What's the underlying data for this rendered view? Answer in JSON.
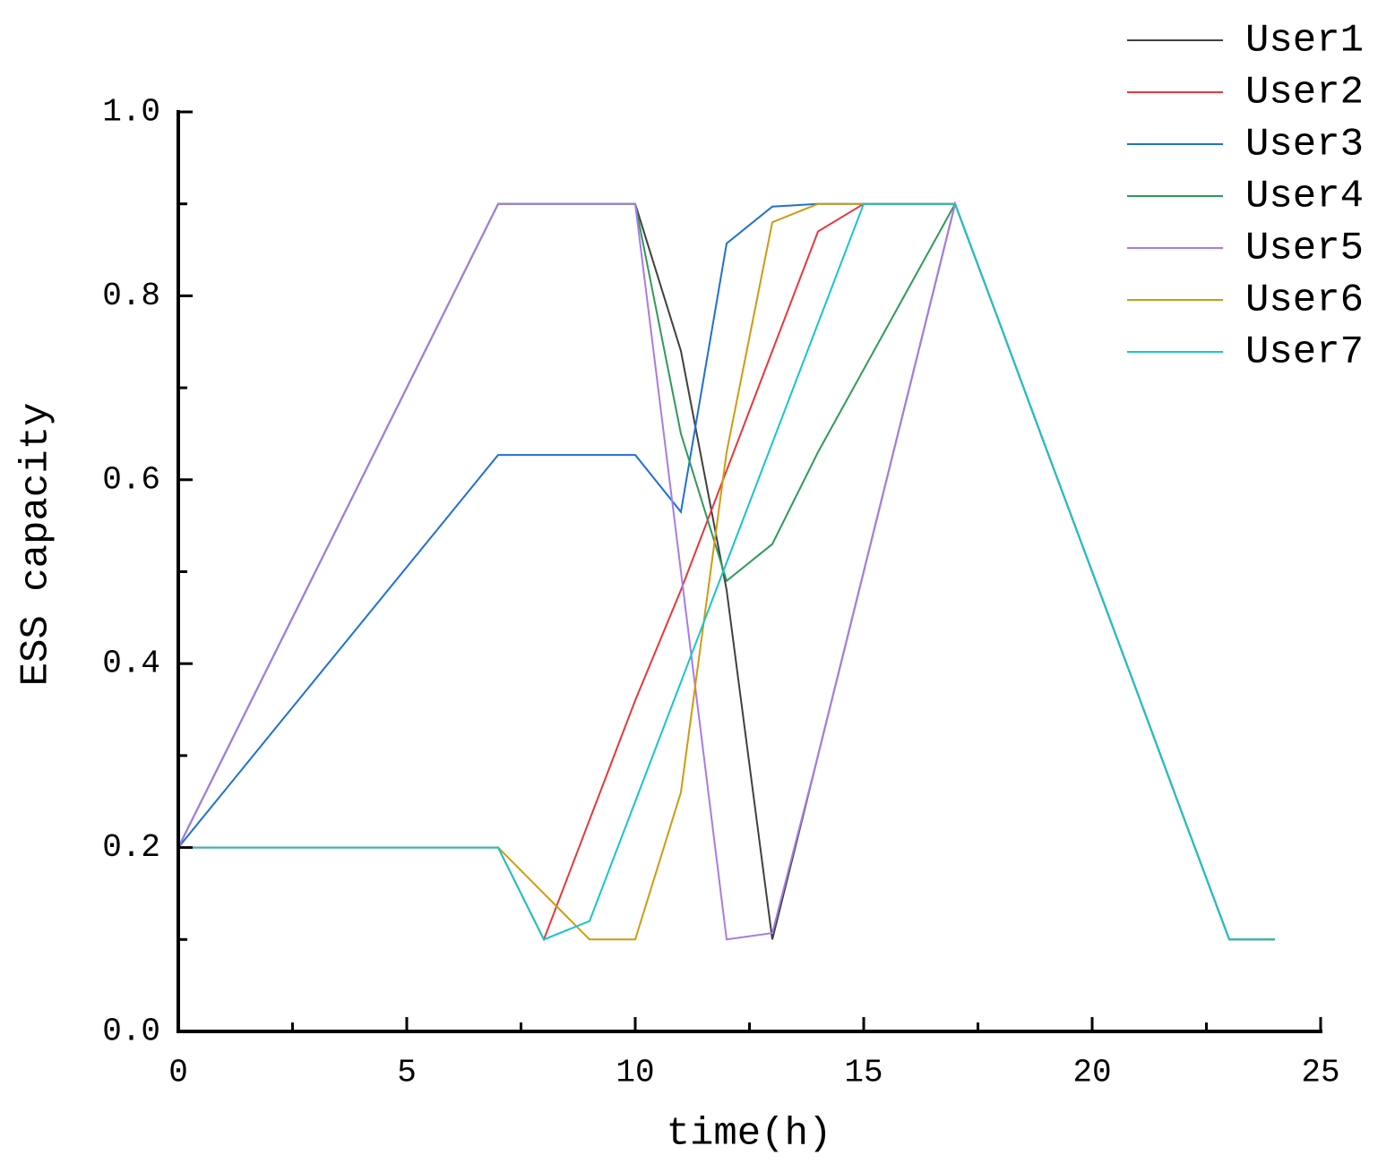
{
  "chart_data": {
    "type": "line",
    "xlabel": "time(h)",
    "ylabel": "ESS capacity",
    "x": [
      0,
      1,
      2,
      3,
      4,
      5,
      6,
      7,
      8,
      9,
      10,
      11,
      12,
      13,
      14,
      15,
      16,
      17,
      18,
      19,
      20,
      21,
      22,
      23,
      24
    ],
    "series": [
      {
        "name": "User1",
        "color": "#404040",
        "values": [
          0.2,
          0.3,
          0.4,
          0.5,
          0.6,
          0.7,
          0.8,
          0.9,
          0.9,
          0.9,
          0.9,
          0.74,
          0.48,
          0.1,
          0.3,
          0.5,
          0.7,
          0.9,
          0.767,
          0.633,
          0.5,
          0.367,
          0.233,
          0.1,
          0.1
        ]
      },
      {
        "name": "User2",
        "color": "#e8373a",
        "values": [
          0.2,
          0.2,
          0.2,
          0.2,
          0.2,
          0.2,
          0.2,
          0.2,
          0.1,
          0.23,
          0.36,
          0.48,
          0.61,
          0.74,
          0.87,
          0.9,
          0.9,
          0.9,
          0.767,
          0.633,
          0.5,
          0.367,
          0.233,
          0.1,
          0.1
        ]
      },
      {
        "name": "User3",
        "color": "#1f6fd8",
        "values": [
          0.2,
          0.261,
          0.322,
          0.383,
          0.444,
          0.505,
          0.566,
          0.627,
          0.627,
          0.627,
          0.627,
          0.565,
          0.857,
          0.897,
          0.9,
          0.9,
          0.9,
          0.9,
          0.767,
          0.633,
          0.5,
          0.367,
          0.233,
          0.1,
          0.1
        ]
      },
      {
        "name": "User4",
        "color": "#2e9a5a",
        "values": [
          0.2,
          0.3,
          0.4,
          0.5,
          0.6,
          0.7,
          0.8,
          0.9,
          0.9,
          0.9,
          0.9,
          0.65,
          0.49,
          0.53,
          0.63,
          0.72,
          0.81,
          0.9,
          0.767,
          0.633,
          0.5,
          0.367,
          0.233,
          0.1,
          0.1
        ]
      },
      {
        "name": "User5",
        "color": "#a97be8",
        "values": [
          0.2,
          0.3,
          0.4,
          0.5,
          0.6,
          0.7,
          0.8,
          0.9,
          0.9,
          0.9,
          0.9,
          0.5,
          0.1,
          0.107,
          0.3,
          0.5,
          0.7,
          0.9,
          0.767,
          0.633,
          0.5,
          0.367,
          0.233,
          0.1,
          0.1
        ]
      },
      {
        "name": "User6",
        "color": "#d19a0e",
        "values": [
          0.2,
          0.2,
          0.2,
          0.2,
          0.2,
          0.2,
          0.2,
          0.2,
          0.15,
          0.1,
          0.1,
          0.26,
          0.63,
          0.88,
          0.9,
          0.9,
          0.9,
          0.9,
          0.767,
          0.633,
          0.5,
          0.367,
          0.233,
          0.1,
          0.1
        ]
      },
      {
        "name": "User7",
        "color": "#19c4cc",
        "values": [
          0.2,
          0.2,
          0.2,
          0.2,
          0.2,
          0.2,
          0.2,
          0.2,
          0.1,
          0.12,
          0.25,
          0.38,
          0.51,
          0.64,
          0.77,
          0.9,
          0.9,
          0.9,
          0.767,
          0.633,
          0.5,
          0.367,
          0.233,
          0.1,
          0.1
        ]
      }
    ],
    "xlim": [
      0,
      25
    ],
    "xticks": [
      0,
      5,
      10,
      15,
      20,
      25
    ],
    "ylim": [
      0,
      1
    ],
    "yticks": [
      {
        "value": 0,
        "label": "0.0"
      },
      0.2,
      0.4,
      0.6,
      0.8,
      {
        "value": 1,
        "label": "1.0"
      }
    ],
    "legend": "upper right"
  }
}
